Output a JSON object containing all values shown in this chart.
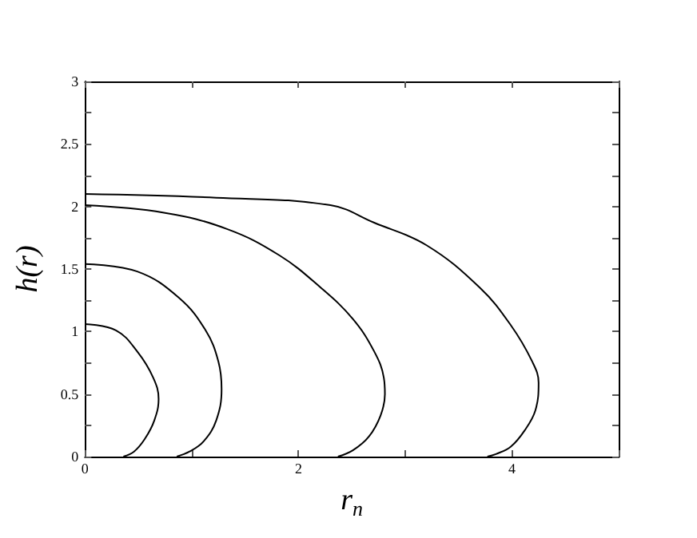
{
  "chart_data": {
    "type": "line",
    "xlabel": "r$_{n}$",
    "ylabel": "h(r)",
    "xlim": [
      0,
      5
    ],
    "ylim": [
      0,
      3
    ],
    "xticks": [
      0,
      {
        "value": 1,
        "label": null
      },
      2,
      {
        "value": 3,
        "label": null
      },
      4,
      {
        "value": 5,
        "label": null
      }
    ],
    "yticks": [
      0,
      {
        "value": 0.25,
        "label": null
      },
      0.5,
      {
        "value": 0.75,
        "label": null
      },
      1,
      {
        "value": 1.25,
        "label": null
      },
      1.5,
      {
        "value": 1.75,
        "label": null
      },
      2,
      {
        "value": 2.25,
        "label": null
      },
      2.5,
      {
        "value": 2.75,
        "label": null
      },
      3
    ],
    "grid": false,
    "marker": "none",
    "line_style": "solid",
    "series": [
      {
        "color": "#000000",
        "x": [
          0,
          0.29,
          0.49,
          0.64,
          0.69,
          0.65,
          0.56,
          0.46,
          0.36
        ],
        "values": [
          1.06,
          1.01,
          0.84,
          0.63,
          0.46,
          0.29,
          0.14,
          0.04,
          0
        ]
      },
      {
        "color": "#000000",
        "x": [
          0,
          0.49,
          0.88,
          1.13,
          1.25,
          1.28,
          1.23,
          1.11,
          0.98,
          0.86
        ],
        "values": [
          1.54,
          1.48,
          1.27,
          1.01,
          0.76,
          0.54,
          0.29,
          0.12,
          0.04,
          0
        ]
      },
      {
        "color": "#000000",
        "x": [
          0,
          0.74,
          1.33,
          1.82,
          2.21,
          2.51,
          2.71,
          2.8,
          2.81,
          2.77,
          2.66,
          2.51,
          2.37
        ],
        "values": [
          2.01,
          1.95,
          1.82,
          1.61,
          1.35,
          1.1,
          0.84,
          0.63,
          0.5,
          0.33,
          0.16,
          0.05,
          0
        ]
      },
      {
        "color": "#000000",
        "x": [
          0,
          1.23,
          2.3,
          2.71,
          3.2,
          3.7,
          3.99,
          4.19,
          4.25,
          4.22,
          4.12,
          3.99,
          3.85,
          3.77
        ],
        "values": [
          2.1,
          2.07,
          2.01,
          1.87,
          1.69,
          1.35,
          1.05,
          0.76,
          0.59,
          0.37,
          0.21,
          0.08,
          0.02,
          0
        ]
      }
    ]
  }
}
